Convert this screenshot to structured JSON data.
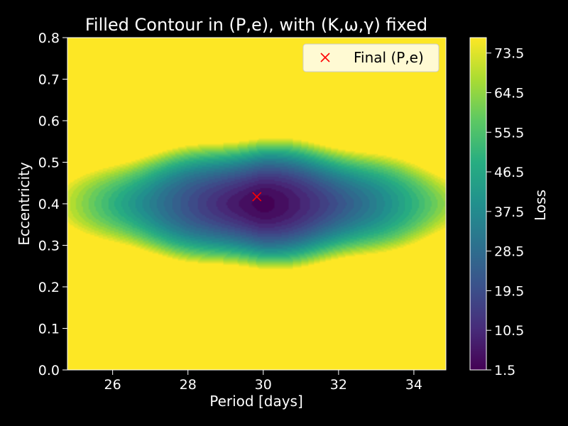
{
  "chart_data": {
    "type": "heatmap",
    "title": "Filled Contour in (P,e), with (K,ω,γ) fixed",
    "xlabel": "Period [days]",
    "ylabel": "Eccentricity",
    "xlim": [
      24.8,
      34.85
    ],
    "ylim": [
      0.0,
      0.8
    ],
    "xticks": [
      26,
      28,
      30,
      32,
      34
    ],
    "yticks": [
      0.0,
      0.1,
      0.2,
      0.3,
      0.4,
      0.5,
      0.6,
      0.7,
      0.8
    ],
    "colorbar": {
      "label": "Loss",
      "colormap": "viridis",
      "range": [
        1.5,
        77.0
      ],
      "ticks": [
        1.5,
        10.5,
        19.5,
        28.5,
        37.5,
        46.5,
        55.5,
        64.5,
        73.5
      ]
    },
    "minimum": {
      "P": 30.0,
      "e": 0.4,
      "loss": 1.5
    },
    "marker": {
      "label": "Final (P,e)",
      "P": 29.83,
      "e": 0.417,
      "color": "#ff0000",
      "symbol": "x"
    },
    "legend_position": "upper-right"
  }
}
